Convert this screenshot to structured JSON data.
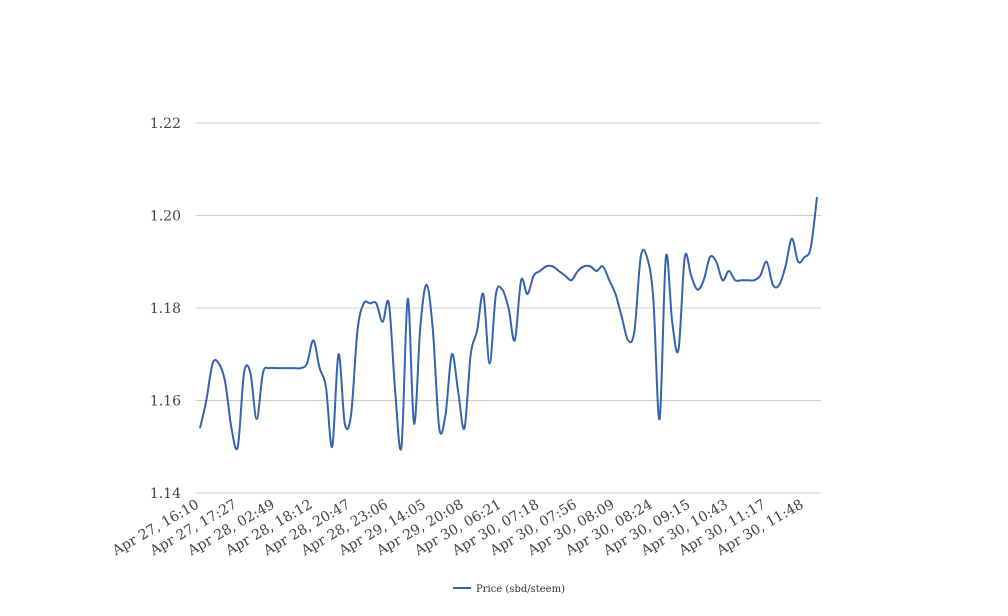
{
  "chart_data": {
    "type": "line",
    "categories": [
      "Apr 27, 16:10",
      null,
      null,
      null,
      null,
      null,
      "Apr 27, 17:27",
      null,
      null,
      null,
      null,
      null,
      "Apr 28, 02:49",
      null,
      null,
      null,
      null,
      null,
      "Apr 28, 18:12",
      null,
      null,
      null,
      null,
      null,
      "Apr 28, 20:47",
      null,
      null,
      null,
      null,
      null,
      "Apr 28, 23:06",
      null,
      null,
      null,
      null,
      null,
      "Apr 29, 14:05",
      null,
      null,
      null,
      null,
      null,
      "Apr 29, 20:08",
      null,
      null,
      null,
      null,
      null,
      "Apr 30, 06:21",
      null,
      null,
      null,
      null,
      null,
      "Apr 30, 07:18",
      null,
      null,
      null,
      null,
      null,
      "Apr 30, 07:56",
      null,
      null,
      null,
      null,
      null,
      "Apr 30, 08:09",
      null,
      null,
      null,
      null,
      null,
      "Apr 30, 08:24",
      null,
      null,
      null,
      null,
      null,
      "Apr 30, 09:15",
      null,
      null,
      null,
      null,
      null,
      "Apr 30, 10:43",
      null,
      null,
      null,
      null,
      null,
      "Apr 30, 11:17",
      null,
      null,
      null,
      null,
      null,
      "Apr 30, 11:48",
      null,
      null
    ],
    "series": [
      {
        "name": "Price (sbd/steem)",
        "color": "#3563b0",
        "values": [
          1.154,
          1.16,
          1.168,
          1.168,
          1.164,
          1.154,
          1.15,
          1.166,
          1.166,
          1.156,
          1.166,
          1.167,
          1.167,
          1.167,
          1.167,
          1.167,
          1.167,
          1.168,
          1.173,
          1.167,
          1.163,
          1.15,
          1.17,
          1.155,
          1.157,
          1.175,
          1.181,
          1.181,
          1.181,
          1.177,
          1.181,
          1.162,
          1.15,
          1.182,
          1.155,
          1.176,
          1.185,
          1.175,
          1.154,
          1.157,
          1.17,
          1.162,
          1.154,
          1.17,
          1.175,
          1.183,
          1.168,
          1.183,
          1.184,
          1.18,
          1.173,
          1.186,
          1.183,
          1.187,
          1.188,
          1.189,
          1.189,
          1.188,
          1.187,
          1.186,
          1.188,
          1.189,
          1.189,
          1.188,
          1.189,
          1.186,
          1.183,
          1.178,
          1.173,
          1.175,
          1.191,
          1.191,
          1.182,
          1.156,
          1.191,
          1.177,
          1.171,
          1.191,
          1.187,
          1.184,
          1.186,
          1.191,
          1.19,
          1.186,
          1.188,
          1.186,
          1.186,
          1.186,
          1.186,
          1.187,
          1.19,
          1.185,
          1.185,
          1.189,
          1.195,
          1.19,
          1.191,
          1.193,
          1.204
        ]
      }
    ],
    "ylim": [
      1.14,
      1.22
    ],
    "yticks": [
      1.14,
      1.16,
      1.18,
      {
        "value": 1.2,
        "label": "1.20"
      },
      1.22
    ],
    "grid": true,
    "legend": "bottom"
  }
}
